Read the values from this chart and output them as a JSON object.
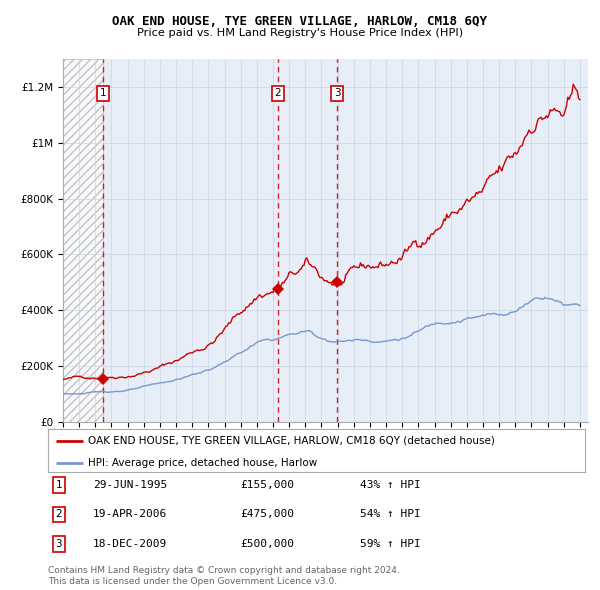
{
  "title": "OAK END HOUSE, TYE GREEN VILLAGE, HARLOW, CM18 6QY",
  "subtitle": "Price paid vs. HM Land Registry's House Price Index (HPI)",
  "legend_label_red": "OAK END HOUSE, TYE GREEN VILLAGE, HARLOW, CM18 6QY (detached house)",
  "legend_label_blue": "HPI: Average price, detached house, Harlow",
  "footer1": "Contains HM Land Registry data © Crown copyright and database right 2024.",
  "footer2": "This data is licensed under the Open Government Licence v3.0.",
  "ylim": [
    0,
    1300000
  ],
  "yticks": [
    0,
    200000,
    400000,
    600000,
    800000,
    1000000,
    1200000
  ],
  "ytick_labels": [
    "£0",
    "£200K",
    "£400K",
    "£600K",
    "£800K",
    "£1M",
    "£1.2M"
  ],
  "xlim_start": 1993.0,
  "xlim_end": 2025.5,
  "sale_dates": [
    1995.49,
    2006.3,
    2009.96
  ],
  "sale_prices": [
    155000,
    475000,
    500000
  ],
  "sale_labels": [
    "1",
    "2",
    "3"
  ],
  "sale_date_strs": [
    "29-JUN-1995",
    "19-APR-2006",
    "18-DEC-2009"
  ],
  "sale_price_strs": [
    "£155,000",
    "£475,000",
    "£500,000"
  ],
  "sale_hpi_strs": [
    "43% ↑ HPI",
    "54% ↑ HPI",
    "59% ↑ HPI"
  ],
  "red_color": "#cc0000",
  "blue_color": "#7799cc",
  "plot_bg": "#e8eef8",
  "grid_color": "#c8d4e4",
  "hatch_edgecolor": "#aaaaaa"
}
